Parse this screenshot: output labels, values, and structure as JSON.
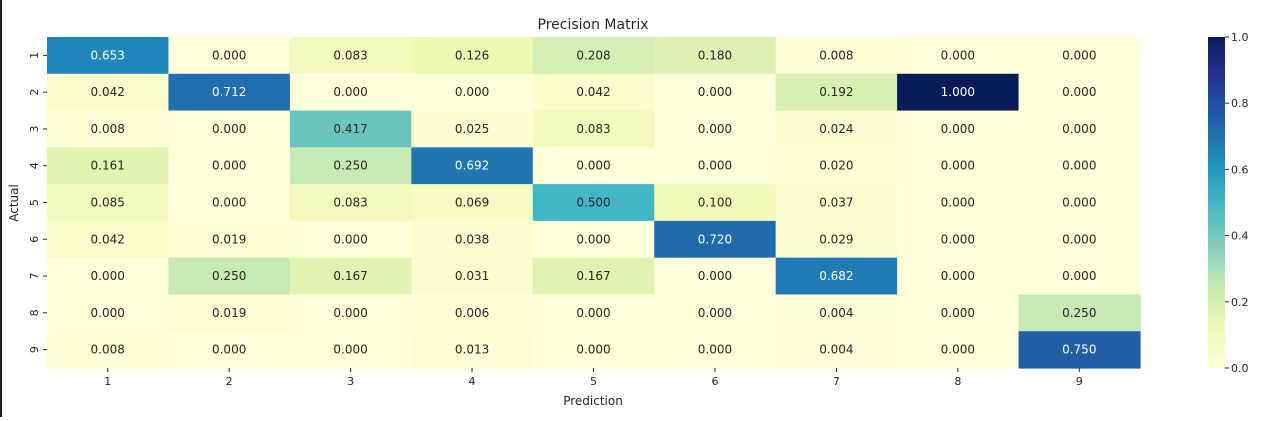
{
  "chart_data": {
    "type": "heatmap",
    "title": "Precision Matrix",
    "xlabel": "Prediction",
    "ylabel": "Actual",
    "x_categories": [
      "1",
      "2",
      "3",
      "4",
      "5",
      "6",
      "7",
      "8",
      "9"
    ],
    "y_categories": [
      "1",
      "2",
      "3",
      "4",
      "5",
      "6",
      "7",
      "8",
      "9"
    ],
    "values": [
      [
        0.653,
        0.0,
        0.083,
        0.126,
        0.208,
        0.18,
        0.008,
        0.0,
        0.0
      ],
      [
        0.042,
        0.712,
        0.0,
        0.0,
        0.042,
        0.0,
        0.192,
        1.0,
        0.0
      ],
      [
        0.008,
        0.0,
        0.417,
        0.025,
        0.083,
        0.0,
        0.024,
        0.0,
        0.0
      ],
      [
        0.161,
        0.0,
        0.25,
        0.692,
        0.0,
        0.0,
        0.02,
        0.0,
        0.0
      ],
      [
        0.085,
        0.0,
        0.083,
        0.069,
        0.5,
        0.1,
        0.037,
        0.0,
        0.0
      ],
      [
        0.042,
        0.019,
        0.0,
        0.038,
        0.0,
        0.72,
        0.029,
        0.0,
        0.0
      ],
      [
        0.0,
        0.25,
        0.167,
        0.031,
        0.167,
        0.0,
        0.682,
        0.0,
        0.0
      ],
      [
        0.0,
        0.019,
        0.0,
        0.006,
        0.0,
        0.0,
        0.004,
        0.0,
        0.25
      ],
      [
        0.008,
        0.0,
        0.0,
        0.013,
        0.0,
        0.0,
        0.004,
        0.0,
        0.75
      ]
    ],
    "value_range": [
      0.0,
      1.0
    ],
    "colormap": "YlGnBu",
    "colorbar_ticks": [
      "0.0",
      "0.2",
      "0.4",
      "0.6",
      "0.8",
      "1.0"
    ],
    "grid": false,
    "colorbar_placement": "right"
  },
  "colors": {
    "background": "#ffffff",
    "text": "#262626",
    "light_text": "#262626",
    "dark_text": "#ffffff"
  }
}
